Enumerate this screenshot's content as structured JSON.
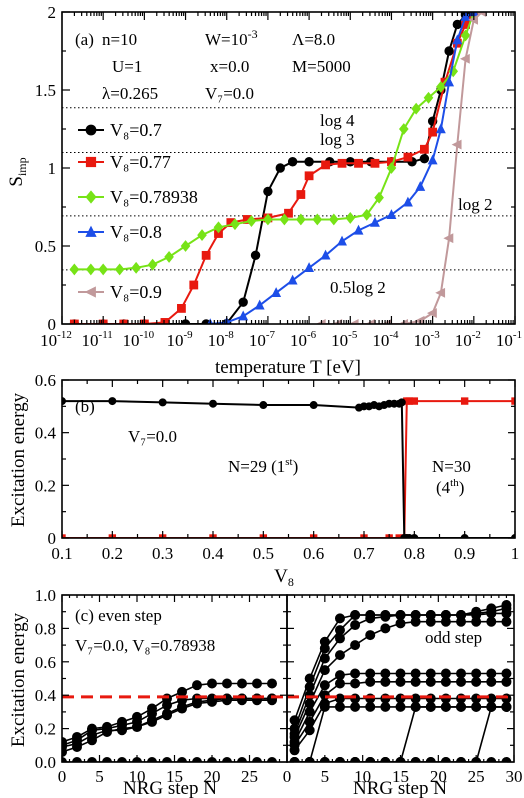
{
  "chart_data": [
    {
      "id": "a",
      "type": "line",
      "panel_label": "(a)",
      "xscale": "log",
      "xlabel": "temperature T [eV]",
      "ylabel_main": "S",
      "ylabel_sub": "imp",
      "xlim_exp": [
        -12,
        -1
      ],
      "ylim": [
        0,
        2
      ],
      "xtick_exps": [
        -12,
        -11,
        -10,
        -9,
        -8,
        -7,
        -6,
        -5,
        -4,
        -3,
        -2,
        -1
      ],
      "ytick_labels": [
        "0",
        "0.5",
        "1",
        "1.5",
        "2"
      ],
      "yticks": [
        0,
        0.5,
        1,
        1.5,
        2
      ],
      "params": [
        [
          "n=10",
          "W=10",
          "Λ=8.0"
        ],
        [
          "U=1",
          "x=0.0",
          "M=5000"
        ],
        [
          "λ=0.265",
          "V₇=0.0",
          ""
        ]
      ],
      "param_W_exp": "-3",
      "reference_lines": [
        {
          "label": "log 4",
          "y": 1.386
        },
        {
          "label": "log 3",
          "y": 1.099
        },
        {
          "label": "log 2",
          "y": 0.693
        },
        {
          "label": "0.5log 2",
          "y": 0.347
        }
      ],
      "series": [
        {
          "name": "V₈=0.7",
          "color": "#000000",
          "marker": "circle",
          "x": [
            -11.7,
            -11,
            -10.5,
            -10,
            -9.5,
            -9,
            -8.5,
            -8,
            -7.6,
            -7.3,
            -7,
            -6.7,
            -6.4,
            -6,
            -5.5,
            -5,
            -4.5,
            -4,
            -3.5,
            -3.2,
            -3,
            -2.8,
            -2.6,
            -2.4,
            -2.2,
            -2
          ],
          "y": [
            0,
            0,
            0,
            0,
            0,
            0,
            0,
            0.003,
            0.14,
            0.44,
            0.85,
            1.0,
            1.04,
            1.04,
            1.04,
            1.04,
            1.04,
            1.04,
            1.04,
            1.06,
            1.3,
            1.5,
            1.75,
            1.92,
            1.98,
            2.0
          ]
        },
        {
          "name": "V₈=0.77",
          "color": "#e8190f",
          "marker": "square",
          "x": [
            -11.7,
            -11,
            -10.5,
            -10,
            -9.5,
            -9.1,
            -8.8,
            -8.5,
            -8.2,
            -7.9,
            -7.5,
            -7,
            -6.5,
            -6.2,
            -6,
            -5.6,
            -5.2,
            -4.8,
            -4.4,
            -4,
            -3.6,
            -3.2,
            -3,
            -2.7,
            -2.4,
            -2.2,
            -2
          ],
          "y": [
            0,
            0,
            0,
            0,
            0.01,
            0.1,
            0.25,
            0.44,
            0.58,
            0.65,
            0.67,
            0.68,
            0.71,
            0.83,
            0.95,
            1.02,
            1.03,
            1.03,
            1.03,
            1.04,
            1.07,
            1.12,
            1.23,
            1.55,
            1.8,
            1.92,
            2.0
          ]
        },
        {
          "name": "V₈=0.78938",
          "color": "#77e317",
          "marker": "diamond",
          "x": [
            -11.7,
            -11.3,
            -11,
            -10.6,
            -10.2,
            -9.8,
            -9.4,
            -9,
            -8.6,
            -8.2,
            -7.8,
            -7.4,
            -7,
            -6.6,
            -6.2,
            -5.8,
            -5.4,
            -5,
            -4.6,
            -4.3,
            -4,
            -3.7,
            -3.4,
            -3.1,
            -2.8,
            -2.5,
            -2.2,
            -2
          ],
          "y": [
            0.35,
            0.35,
            0.35,
            0.35,
            0.36,
            0.38,
            0.43,
            0.5,
            0.57,
            0.62,
            0.64,
            0.66,
            0.67,
            0.67,
            0.67,
            0.67,
            0.67,
            0.68,
            0.7,
            0.81,
            1.0,
            1.25,
            1.38,
            1.45,
            1.52,
            1.62,
            1.85,
            2.0
          ]
        },
        {
          "name": "V₈=0.8",
          "color": "#1d4ee8",
          "marker": "triangle-up",
          "x": [
            -8.4,
            -8,
            -7.6,
            -7.2,
            -6.8,
            -6.4,
            -6,
            -5.6,
            -5.2,
            -4.8,
            -4.4,
            -4,
            -3.6,
            -3.3,
            -3,
            -2.8,
            -2.6,
            -2.4,
            -2.2,
            -2
          ],
          "y": [
            0,
            0.01,
            0.05,
            0.12,
            0.2,
            0.28,
            0.36,
            0.44,
            0.53,
            0.6,
            0.65,
            0.7,
            0.78,
            0.88,
            1.05,
            1.25,
            1.55,
            1.82,
            1.97,
            2.0
          ]
        },
        {
          "name": "V₈=0.9",
          "color": "#c1999b",
          "marker": "triangle-left",
          "x": [
            -5.7,
            -5.3,
            -4.9,
            -4.5,
            -4.1,
            -3.7,
            -3.3,
            -3,
            -2.8,
            -2.6,
            -2.4,
            -2.2,
            -2,
            -1.8
          ],
          "y": [
            0,
            0,
            0,
            0,
            0,
            0,
            0.02,
            0.07,
            0.2,
            0.55,
            1.15,
            1.7,
            1.95,
            2.0
          ]
        }
      ]
    },
    {
      "id": "b",
      "type": "line",
      "panel_label": "(b)",
      "xlabel_main": "V",
      "xlabel_sub": "8",
      "ylabel": "Excitation energy",
      "param_V7": "V₇=0.0",
      "xlim": [
        0.1,
        1
      ],
      "ylim": [
        0,
        0.6
      ],
      "xticks": [
        0.1,
        0.2,
        0.3,
        0.4,
        0.5,
        0.6,
        0.7,
        0.8,
        0.9,
        1
      ],
      "xtick_labels": [
        "0.1",
        "0.2",
        "0.3",
        "0.4",
        "0.5",
        "0.6",
        "0.7",
        "0.8",
        "0.9",
        "1"
      ],
      "yticks": [
        0,
        0.2,
        0.4,
        0.6
      ],
      "ytick_labels": [
        "0",
        "0.2",
        "0.4",
        "0.6"
      ],
      "annotation_left": {
        "text": "N=29 (1",
        "sup": "st",
        "close": ")"
      },
      "annotation_right_1": "N=30",
      "annotation_right_2": {
        "text": "(4",
        "sup": "th",
        "close": ")"
      },
      "series": [
        {
          "name": "N=29 (1st)",
          "color": "#000000",
          "marker": "circle",
          "x": [
            0.1,
            0.2,
            0.3,
            0.4,
            0.5,
            0.6,
            0.69,
            0.7,
            0.71,
            0.72,
            0.73,
            0.74,
            0.75,
            0.76,
            0.77,
            0.775,
            0.78,
            0.785,
            0.79,
            0.8,
            0.9,
            1.0
          ],
          "y": [
            0.52,
            0.52,
            0.515,
            0.51,
            0.505,
            0.505,
            0.495,
            0.5,
            0.5,
            0.505,
            0.5,
            0.505,
            0.51,
            0.51,
            0.51,
            0.515,
            0.0,
            0.0,
            0.0,
            0.0,
            0.0,
            0.0
          ]
        },
        {
          "name": "N=30 (4th)",
          "color": "#e8190f",
          "marker": "square",
          "x": [
            0.1,
            0.2,
            0.3,
            0.4,
            0.5,
            0.6,
            0.7,
            0.75,
            0.77,
            0.78,
            0.785,
            0.79,
            0.8,
            0.9,
            1.0
          ],
          "y": [
            0.0,
            0.0,
            0.0,
            0.0,
            0.0,
            0.0,
            0.0,
            0.0,
            0.0,
            0.0,
            0.52,
            0.52,
            0.52,
            0.52,
            0.52
          ]
        }
      ]
    },
    {
      "id": "c",
      "type": "line",
      "panel_label": "(c) even step",
      "param_line": "V₇=0.0, V₈=0.78938",
      "right_label": "odd step",
      "xlabel": "NRG step N",
      "ylabel": "Excitation energy",
      "ylim": [
        0,
        1
      ],
      "yticks": [
        0,
        0.2,
        0.4,
        0.6,
        0.8,
        1.0
      ],
      "ytick_labels": [
        "0.0",
        "0.2",
        "0.4",
        "0.6",
        "0.8",
        "1.0"
      ],
      "dashed_level": 0.39,
      "even": {
        "xlim": [
          0,
          30
        ],
        "xticks": [
          0,
          5,
          10,
          15,
          20,
          25
        ],
        "xtick_labels": [
          "0",
          "5",
          "10",
          "15",
          "20",
          "25"
        ],
        "x": [
          0,
          2,
          4,
          6,
          8,
          10,
          12,
          14,
          16,
          18,
          20,
          22,
          24,
          26,
          28
        ],
        "series": [
          [
            0,
            0,
            0,
            0,
            0,
            0,
            0,
            0,
            0,
            0,
            0,
            0,
            0,
            0,
            0
          ],
          [
            0.06,
            0.09,
            0.13,
            0.18,
            0.2,
            0.21,
            0.24,
            0.28,
            0.32,
            0.35,
            0.36,
            0.37,
            0.37,
            0.37,
            0.37
          ],
          [
            0.09,
            0.11,
            0.16,
            0.19,
            0.19,
            0.21,
            0.25,
            0.29,
            0.33,
            0.36,
            0.37,
            0.38,
            0.38,
            0.38,
            0.38
          ],
          [
            0.1,
            0.13,
            0.19,
            0.2,
            0.22,
            0.24,
            0.29,
            0.34,
            0.37,
            0.38,
            0.38,
            0.38,
            0.38,
            0.38,
            0.38
          ],
          [
            0.12,
            0.15,
            0.2,
            0.21,
            0.24,
            0.27,
            0.32,
            0.38,
            0.42,
            0.46,
            0.47,
            0.47,
            0.47,
            0.47,
            0.47
          ]
        ]
      },
      "odd": {
        "xlim": [
          0,
          30
        ],
        "xticks": [
          0,
          5,
          10,
          15,
          20,
          25,
          30
        ],
        "xtick_labels": [
          "0",
          "5",
          "10",
          "15",
          "20",
          "25",
          "30"
        ],
        "x": [
          1,
          3,
          5,
          7,
          9,
          11,
          13,
          15,
          17,
          19,
          21,
          23,
          25,
          27,
          29
        ],
        "series": [
          [
            0,
            0,
            0,
            0,
            0,
            0,
            0,
            0,
            0,
            0,
            0,
            0,
            0,
            0,
            0
          ],
          [
            0,
            0,
            0,
            0,
            0,
            0,
            0,
            0,
            0,
            0,
            0,
            0,
            0,
            0.33,
            0.33
          ],
          [
            0,
            0,
            0,
            0,
            0,
            0,
            0,
            0,
            0.33,
            0.33,
            0.33,
            0.33,
            0.33,
            0.33,
            0.33
          ],
          [
            0,
            0,
            0.33,
            0.33,
            0.33,
            0.33,
            0.33,
            0.33,
            0.33,
            0.33,
            0.33,
            0.33,
            0.33,
            0.33,
            0.33
          ],
          [
            0.07,
            0.19,
            0.35,
            0.38,
            0.38,
            0.38,
            0.38,
            0.38,
            0.38,
            0.38,
            0.38,
            0.38,
            0.38,
            0.38,
            0.38
          ],
          [
            0.1,
            0.24,
            0.4,
            0.47,
            0.47,
            0.48,
            0.48,
            0.48,
            0.48,
            0.48,
            0.48,
            0.48,
            0.48,
            0.48,
            0.48
          ],
          [
            0.12,
            0.3,
            0.46,
            0.52,
            0.53,
            0.53,
            0.53,
            0.53,
            0.53,
            0.53,
            0.53,
            0.53,
            0.53,
            0.53,
            0.53
          ],
          [
            0.15,
            0.35,
            0.55,
            0.64,
            0.7,
            0.76,
            0.8,
            0.83,
            0.84,
            0.84,
            0.84,
            0.84,
            0.84,
            0.84,
            0.84
          ],
          [
            0.17,
            0.4,
            0.62,
            0.74,
            0.82,
            0.86,
            0.87,
            0.88,
            0.88,
            0.88,
            0.88,
            0.88,
            0.88,
            0.89,
            0.89
          ],
          [
            0.2,
            0.45,
            0.68,
            0.79,
            0.88,
            0.88,
            0.88,
            0.88,
            0.88,
            0.88,
            0.88,
            0.88,
            0.89,
            0.9,
            0.92
          ],
          [
            0.25,
            0.5,
            0.72,
            0.86,
            0.88,
            0.88,
            0.88,
            0.88,
            0.88,
            0.88,
            0.88,
            0.88,
            0.9,
            0.92,
            0.94
          ]
        ]
      }
    }
  ]
}
